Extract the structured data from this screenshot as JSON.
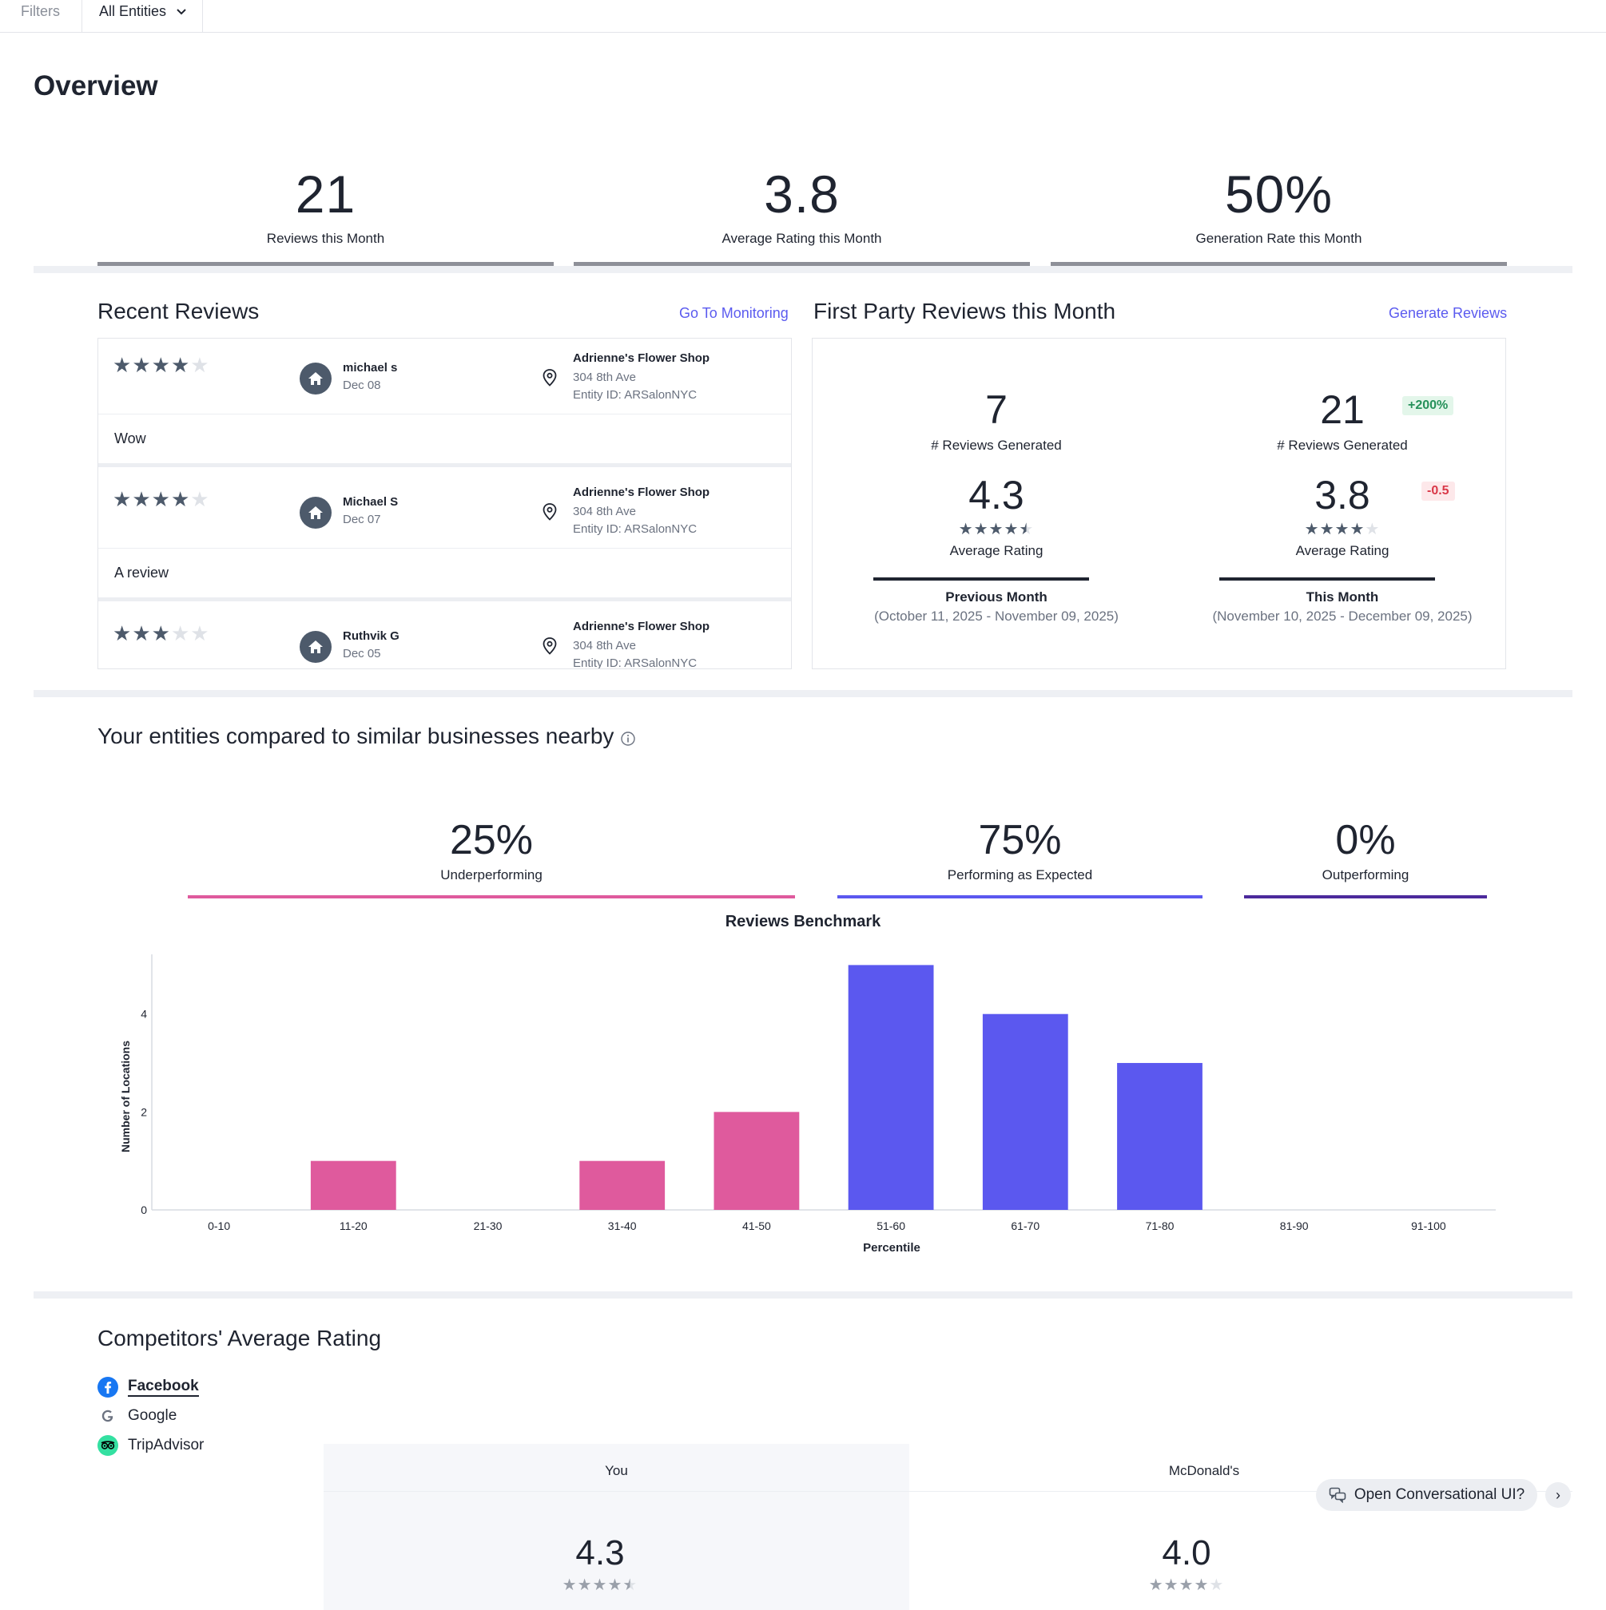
{
  "filters": {
    "label": "Filters",
    "selected": "All Entities"
  },
  "page_title": "Overview",
  "stats": [
    {
      "value": "21",
      "label": "Reviews this Month"
    },
    {
      "value": "3.8",
      "label": "Average Rating this Month"
    },
    {
      "value": "50%",
      "label": "Generation Rate this Month"
    }
  ],
  "recent_reviews": {
    "title": "Recent Reviews",
    "link": "Go To Monitoring",
    "items": [
      {
        "rating": 4,
        "name": "michael s",
        "date": "Dec 08",
        "shop": "Adrienne's Flower Shop",
        "address": "304 8th Ave",
        "entity": "Entity ID: ARSalonNYC",
        "text": "Wow"
      },
      {
        "rating": 4,
        "name": "Michael S",
        "date": "Dec 07",
        "shop": "Adrienne's Flower Shop",
        "address": "304 8th Ave",
        "entity": "Entity ID: ARSalonNYC",
        "text": "A review"
      },
      {
        "rating": 3,
        "name": "Ruthvik G",
        "date": "Dec 05",
        "shop": "Adrienne's Flower Shop",
        "address": "304 8th Ave",
        "entity": "Entity ID: ARSalonNYC",
        "text": ""
      }
    ]
  },
  "first_party": {
    "title": "First Party Reviews this Month",
    "link": "Generate Reviews",
    "previous": {
      "generated": "7",
      "generated_label": "# Reviews Generated",
      "avg": "4.3",
      "avg_label": "Average Rating",
      "stars": 4.5,
      "period": "Previous Month",
      "range": "(October 11, 2025 - November 09, 2025)"
    },
    "current": {
      "generated": "21",
      "generated_label": "# Reviews Generated",
      "generated_change": "+200%",
      "avg": "3.8",
      "avg_label": "Average Rating",
      "avg_change": "-0.5",
      "stars": 4,
      "period": "This Month",
      "range": "(November 10, 2025 - December 09, 2025)"
    }
  },
  "benchmark": {
    "title": "Your entities compared to similar businesses nearby",
    "summary": [
      {
        "value": "25%",
        "label": "Underperforming",
        "color": "#df5a9d"
      },
      {
        "value": "75%",
        "label": "Performing as Expected",
        "color": "#5b58ef"
      },
      {
        "value": "0%",
        "label": "Outperforming",
        "color": "#4c2a9c"
      }
    ]
  },
  "chart_data": {
    "type": "bar",
    "title": "Reviews Benchmark",
    "xlabel": "Percentile",
    "ylabel": "Number of Locations",
    "categories": [
      "0-10",
      "11-20",
      "21-30",
      "31-40",
      "41-50",
      "51-60",
      "61-70",
      "71-80",
      "81-90",
      "91-100"
    ],
    "values": [
      0,
      1,
      0,
      1,
      2,
      5,
      4,
      3,
      0,
      0
    ],
    "bar_colors": [
      "#df5a9d",
      "#df5a9d",
      "#df5a9d",
      "#df5a9d",
      "#df5a9d",
      "#5b58ef",
      "#5b58ef",
      "#5b58ef",
      "#5b58ef",
      "#5b58ef"
    ],
    "yticks": [
      0,
      2,
      4
    ],
    "ylim": [
      0,
      5.3
    ],
    "grid": false
  },
  "competitors": {
    "title": "Competitors' Average Rating",
    "sources": [
      {
        "label": "Facebook",
        "icon": "facebook-icon",
        "active": true
      },
      {
        "label": "Google",
        "icon": "google-icon",
        "active": false
      },
      {
        "label": "TripAdvisor",
        "icon": "tripadvisor-icon",
        "active": false
      }
    ],
    "columns": [
      {
        "name": "You",
        "rating": "4.3",
        "stars": 4.5
      },
      {
        "name": "McDonald's",
        "rating": "4.0",
        "stars": 4
      }
    ]
  },
  "conversational": {
    "label": "Open Conversational UI?"
  }
}
